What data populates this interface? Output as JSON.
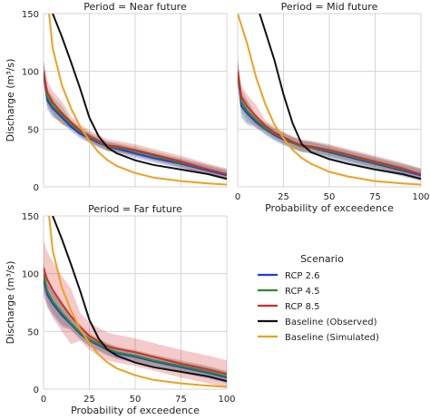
{
  "chart_data": [
    {
      "type": "line",
      "title": "Period = Near future",
      "xlabel": "",
      "ylabel": "Discharge (m³/s)",
      "xlim": [
        0,
        100
      ],
      "ylim": [
        0,
        150
      ],
      "xticks": [],
      "yticks": [
        0,
        50,
        100,
        150
      ],
      "grid": true,
      "series": [
        {
          "name": "RCP 2.6",
          "color": "#1f3fd0",
          "band": 4,
          "x": [
            0,
            2,
            5,
            10,
            15,
            20,
            25,
            30,
            35,
            40,
            50,
            60,
            75,
            90,
            100
          ],
          "y": [
            100,
            75,
            68,
            60,
            52,
            46,
            42,
            38,
            35,
            33,
            29,
            25,
            20,
            14,
            10
          ]
        },
        {
          "name": "RCP 4.5",
          "color": "#2e8b2e",
          "band": 4,
          "x": [
            0,
            2,
            5,
            10,
            15,
            20,
            25,
            30,
            35,
            40,
            50,
            60,
            75,
            90,
            100
          ],
          "y": [
            100,
            78,
            70,
            62,
            54,
            48,
            43,
            39,
            35,
            34,
            31,
            27,
            21,
            15,
            11
          ]
        },
        {
          "name": "RCP 8.5",
          "color": "#d52b2b",
          "band": 5,
          "x": [
            0,
            2,
            5,
            10,
            15,
            20,
            25,
            30,
            35,
            40,
            50,
            60,
            75,
            90,
            100
          ],
          "y": [
            100,
            82,
            73,
            64,
            56,
            49,
            44,
            40,
            36,
            35,
            32,
            28,
            22,
            15,
            11
          ]
        },
        {
          "name": "Baseline (Observed)",
          "color": "#111111",
          "band": 0,
          "x": [
            5,
            10,
            15,
            20,
            25,
            30,
            35,
            40,
            50,
            60,
            75,
            90,
            100
          ],
          "y": [
            150,
            130,
            108,
            85,
            60,
            44,
            34,
            29,
            23,
            19,
            15,
            11,
            7
          ]
        },
        {
          "name": "Baseline (Simulated)",
          "color": "#f0a020",
          "band": 0,
          "x": [
            3,
            5,
            10,
            15,
            20,
            25,
            30,
            35,
            40,
            50,
            60,
            75,
            90,
            100
          ],
          "y": [
            150,
            120,
            88,
            68,
            52,
            40,
            30,
            23,
            18,
            12,
            8,
            5,
            3,
            2
          ]
        }
      ]
    },
    {
      "type": "line",
      "title": "Period = Mid future",
      "xlabel": "Probability of exceedence",
      "ylabel": "",
      "xlim": [
        0,
        100
      ],
      "ylim": [
        0,
        150
      ],
      "xticks": [
        0,
        25,
        50,
        75,
        100
      ],
      "yticks": [],
      "grid": true,
      "series": [
        {
          "name": "RCP 2.6",
          "color": "#1f3fd0",
          "band": 5,
          "x": [
            0,
            2,
            5,
            10,
            15,
            20,
            25,
            30,
            35,
            40,
            50,
            60,
            75,
            90,
            100
          ],
          "y": [
            100,
            70,
            64,
            56,
            50,
            45,
            41,
            38,
            35,
            34,
            30,
            26,
            20,
            14,
            10
          ]
        },
        {
          "name": "RCP 4.5",
          "color": "#2e8b2e",
          "band": 5,
          "x": [
            0,
            2,
            5,
            10,
            15,
            20,
            25,
            30,
            35,
            40,
            50,
            60,
            75,
            90,
            100
          ],
          "y": [
            100,
            74,
            66,
            58,
            51,
            46,
            42,
            38,
            35,
            34,
            31,
            27,
            21,
            15,
            11
          ]
        },
        {
          "name": "RCP 8.5",
          "color": "#d52b2b",
          "band": 5,
          "x": [
            0,
            2,
            5,
            10,
            15,
            20,
            25,
            30,
            35,
            40,
            50,
            60,
            75,
            90,
            100
          ],
          "y": [
            100,
            78,
            70,
            61,
            53,
            47,
            43,
            39,
            36,
            35,
            32,
            28,
            22,
            16,
            11
          ]
        },
        {
          "name": "Baseline (Observed)",
          "color": "#111111",
          "band": 0,
          "x": [
            12,
            15,
            20,
            25,
            30,
            35,
            40,
            50,
            60,
            75,
            90,
            100
          ],
          "y": [
            150,
            135,
            110,
            80,
            55,
            37,
            30,
            24,
            20,
            15,
            11,
            7
          ]
        },
        {
          "name": "Baseline (Simulated)",
          "color": "#f0a020",
          "band": 0,
          "x": [
            0,
            5,
            10,
            15,
            20,
            25,
            30,
            35,
            40,
            50,
            60,
            75,
            90,
            100
          ],
          "y": [
            150,
            125,
            95,
            72,
            54,
            42,
            32,
            25,
            20,
            13,
            9,
            5,
            3,
            2
          ]
        }
      ]
    },
    {
      "type": "line",
      "title": "Period = Far future",
      "xlabel": "Probability of exceedence",
      "ylabel": "Discharge (m³/s)",
      "xlim": [
        0,
        100
      ],
      "ylim": [
        0,
        150
      ],
      "xticks": [
        0,
        25,
        50,
        75,
        100
      ],
      "yticks": [
        0,
        50,
        100,
        150
      ],
      "grid": true,
      "series": [
        {
          "name": "RCP 2.6",
          "color": "#1f3fd0",
          "band": 5,
          "x": [
            0,
            2,
            5,
            10,
            15,
            20,
            25,
            30,
            35,
            40,
            50,
            60,
            75,
            90,
            100
          ],
          "y": [
            95,
            82,
            74,
            64,
            56,
            48,
            42,
            38,
            34,
            31,
            28,
            24,
            19,
            14,
            10
          ]
        },
        {
          "name": "RCP 4.5",
          "color": "#2e8b2e",
          "band": 5,
          "x": [
            0,
            2,
            5,
            10,
            15,
            20,
            25,
            30,
            35,
            40,
            50,
            60,
            75,
            90,
            100
          ],
          "y": [
            100,
            85,
            76,
            66,
            57,
            49,
            43,
            39,
            35,
            32,
            29,
            25,
            20,
            15,
            11
          ]
        },
        {
          "name": "RCP 8.5",
          "color": "#d52b2b",
          "band": 12,
          "x": [
            0,
            2,
            5,
            10,
            15,
            20,
            25,
            30,
            35,
            40,
            50,
            60,
            75,
            90,
            100
          ],
          "y": [
            105,
            95,
            86,
            74,
            63,
            54,
            46,
            41,
            37,
            35,
            32,
            28,
            22,
            17,
            13
          ]
        },
        {
          "name": "Baseline (Observed)",
          "color": "#111111",
          "band": 0,
          "x": [
            5,
            10,
            15,
            20,
            25,
            30,
            35,
            40,
            50,
            60,
            75,
            90,
            100
          ],
          "y": [
            150,
            130,
            108,
            85,
            60,
            44,
            34,
            29,
            23,
            19,
            15,
            11,
            7
          ]
        },
        {
          "name": "Baseline (Simulated)",
          "color": "#f0a020",
          "band": 0,
          "x": [
            3,
            5,
            10,
            15,
            20,
            25,
            30,
            35,
            40,
            50,
            60,
            75,
            90,
            100
          ],
          "y": [
            150,
            120,
            88,
            68,
            52,
            40,
            30,
            23,
            18,
            12,
            8,
            5,
            3,
            2
          ]
        }
      ]
    }
  ],
  "legend": {
    "title": "Scenario",
    "placement": "bottom-right",
    "items": [
      {
        "label": "RCP 2.6",
        "color": "#1f3fd0"
      },
      {
        "label": "RCP 4.5",
        "color": "#2e8b2e"
      },
      {
        "label": "RCP 8.5",
        "color": "#d52b2b"
      },
      {
        "label": "Baseline (Observed)",
        "color": "#111111"
      },
      {
        "label": "Baseline (Simulated)",
        "color": "#f0a020"
      }
    ]
  }
}
